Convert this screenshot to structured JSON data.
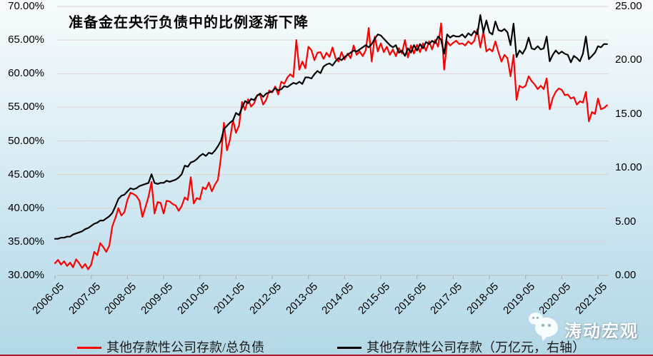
{
  "chart_data": {
    "type": "line",
    "title": "准备金在央行负债中的比例逐渐下降",
    "frequency": "monthly",
    "x_start": "2006-05",
    "x_end": "2021-08",
    "x_tick_labels": [
      "2006-05",
      "2007-05",
      "2008-05",
      "2009-05",
      "2010-05",
      "2011-05",
      "2012-05",
      "2013-05",
      "2014-05",
      "2015-05",
      "2016-05",
      "2017-05",
      "2018-05",
      "2019-05",
      "2020-05",
      "2021-05"
    ],
    "y_axis_left": {
      "tick_labels": [
        "70.00%",
        "65.00%",
        "60.00%",
        "55.00%",
        "50.00%",
        "45.00%",
        "40.00%",
        "35.00%",
        "30.00%"
      ],
      "min": 30,
      "max": 70,
      "step": 5,
      "unit": "%"
    },
    "y_axis_right": {
      "tick_labels": [
        "25.00",
        "20.00",
        "15.00",
        "10.00",
        "5.00",
        "0.00"
      ],
      "min": 0,
      "max": 25,
      "step": 5,
      "unit": "万亿元"
    },
    "grid": true,
    "legend_position": "bottom",
    "series": [
      {
        "name": "其他存款性公司存款/总负债",
        "color": "#ff0000",
        "axis": "left",
        "unit": "%",
        "values": [
          31.8,
          32.3,
          31.6,
          32.1,
          31.4,
          31.9,
          31.2,
          32.4,
          31.8,
          31.1,
          31.7,
          30.9,
          31.6,
          33.5,
          33.0,
          34.8,
          34.2,
          33.5,
          34.4,
          37.3,
          38.5,
          40.0,
          38.9,
          39.4,
          41.2,
          42.3,
          42.1,
          41.8,
          41.1,
          38.7,
          40.2,
          41.7,
          43.9,
          39.2,
          40.9,
          40.8,
          39.2,
          41.1,
          41.0,
          40.6,
          40.4,
          39.6,
          40.3,
          41.6,
          41.2,
          44.6,
          40.7,
          41.5,
          41.3,
          43.1,
          42.8,
          43.8,
          42.5,
          43.5,
          44.2,
          47.5,
          52.7,
          48.6,
          50.2,
          53.1,
          51.2,
          52.3,
          55.8,
          54.6,
          56.2,
          55.1,
          55.6,
          56.8,
          56.9,
          55.4,
          56.1,
          57.5,
          57.2,
          58.1,
          56.9,
          58.8,
          58.5,
          59.4,
          59.9,
          59.5,
          65.0,
          60.6,
          61.8,
          60.8,
          64.0,
          63.5,
          62.0,
          63.1,
          63.2,
          62.2,
          63.1,
          62.5,
          63.9,
          62.3,
          61.8,
          63.2,
          62.1,
          63.0,
          62.3,
          64.2,
          62.8,
          63.3,
          62.6,
          63.5,
          66.8,
          61.8,
          65.5,
          63.3,
          64.5,
          63.2,
          64.0,
          62.8,
          63.6,
          62.6,
          63.8,
          63.0,
          65.0,
          62.4,
          64.2,
          63.0,
          64.3,
          63.2,
          64.5,
          63.4,
          64.8,
          63.6,
          65.0,
          64.0,
          67.5,
          60.6,
          64.8,
          64.2,
          64.6,
          64.9,
          64.4,
          64.5,
          64.2,
          64.8,
          64.4,
          64.9,
          66.6,
          63.9,
          66.3,
          63.3,
          63.7,
          63.3,
          64.8,
          63.2,
          61.8,
          62.8,
          62.3,
          59.6,
          62.8,
          56.1,
          58.2,
          57.9,
          58.2,
          59.6,
          58.9,
          58.4,
          57.7,
          58.2,
          57.7,
          59.3,
          54.7,
          56.4,
          57.3,
          57.8,
          57.6,
          56.8,
          56.9,
          56.3,
          56.5,
          55.4,
          55.9,
          55.7,
          57.3,
          52.9,
          54.3,
          54.0,
          56.3,
          54.7,
          54.9,
          55.3
        ]
      },
      {
        "name": "其他存款性公司存款（万亿元，右轴）",
        "color": "#000000",
        "axis": "right",
        "unit": "万亿元",
        "values": [
          3.4,
          3.4,
          3.5,
          3.5,
          3.6,
          3.6,
          3.8,
          3.9,
          4.0,
          4.1,
          4.3,
          4.4,
          4.6,
          4.8,
          4.9,
          5.1,
          5.1,
          5.3,
          5.5,
          5.8,
          6.4,
          7.1,
          7.4,
          7.5,
          7.8,
          8.1,
          8.0,
          8.1,
          8.3,
          8.4,
          8.5,
          8.6,
          9.4,
          8.6,
          8.5,
          8.6,
          8.6,
          8.8,
          8.7,
          8.8,
          8.9,
          9.1,
          9.4,
          10.2,
          10.1,
          10.5,
          10.6,
          10.8,
          11.1,
          11.3,
          11.1,
          11.4,
          11.3,
          11.6,
          12.0,
          12.5,
          13.6,
          13.9,
          14.2,
          14.4,
          15.1,
          14.9,
          15.6,
          16.2,
          16.0,
          16.4,
          16.3,
          16.7,
          16.9,
          16.6,
          16.9,
          17.0,
          17.1,
          17.4,
          17.2,
          17.3,
          17.6,
          17.5,
          17.7,
          17.9,
          17.8,
          18.0,
          17.8,
          18.4,
          18.4,
          18.3,
          18.7,
          19.0,
          18.8,
          19.4,
          19.6,
          19.7,
          19.5,
          19.9,
          20.2,
          20.0,
          20.3,
          20.5,
          20.7,
          20.9,
          20.8,
          21.0,
          21.2,
          21.4,
          21.2,
          21.5,
          22.0,
          22.4,
          22.3,
          22.0,
          21.7,
          21.4,
          21.2,
          21.4,
          20.7,
          20.9,
          20.4,
          21.1,
          20.7,
          21.4,
          20.9,
          21.5,
          21.1,
          21.7,
          21.5,
          21.8,
          21.6,
          22.2,
          21.9,
          20.6,
          22.4,
          22.1,
          22.3,
          22.2,
          22.2,
          22.4,
          22.1,
          22.5,
          22.3,
          22.7,
          22.4,
          24.2,
          22.6,
          23.7,
          22.6,
          22.4,
          23.6,
          22.8,
          22.7,
          22.9,
          22.6,
          21.4,
          23.4,
          20.3,
          20.9,
          20.6,
          21.1,
          22.1,
          21.1,
          21.0,
          21.3,
          21.0,
          21.1,
          22.2,
          19.9,
          20.5,
          20.9,
          20.6,
          20.8,
          20.6,
          20.5,
          19.8,
          20.4,
          20.2,
          19.9,
          20.6,
          22.2,
          20.1,
          20.4,
          20.7,
          21.3,
          21.2,
          21.5,
          21.5
        ]
      }
    ]
  },
  "watermark": {
    "text": "涛动宏观",
    "icon": "wechat-icon"
  },
  "colors": {
    "background_top": "#f7fcfd",
    "background_bottom": "#b4d8e6",
    "gridline": "#ddd3d3",
    "axis_line": "#c3b9b9",
    "series_ratio": "#ff0000",
    "series_level": "#000000",
    "bottom_rule": "#a61c1c",
    "watermark_text": "#fdfeff"
  }
}
